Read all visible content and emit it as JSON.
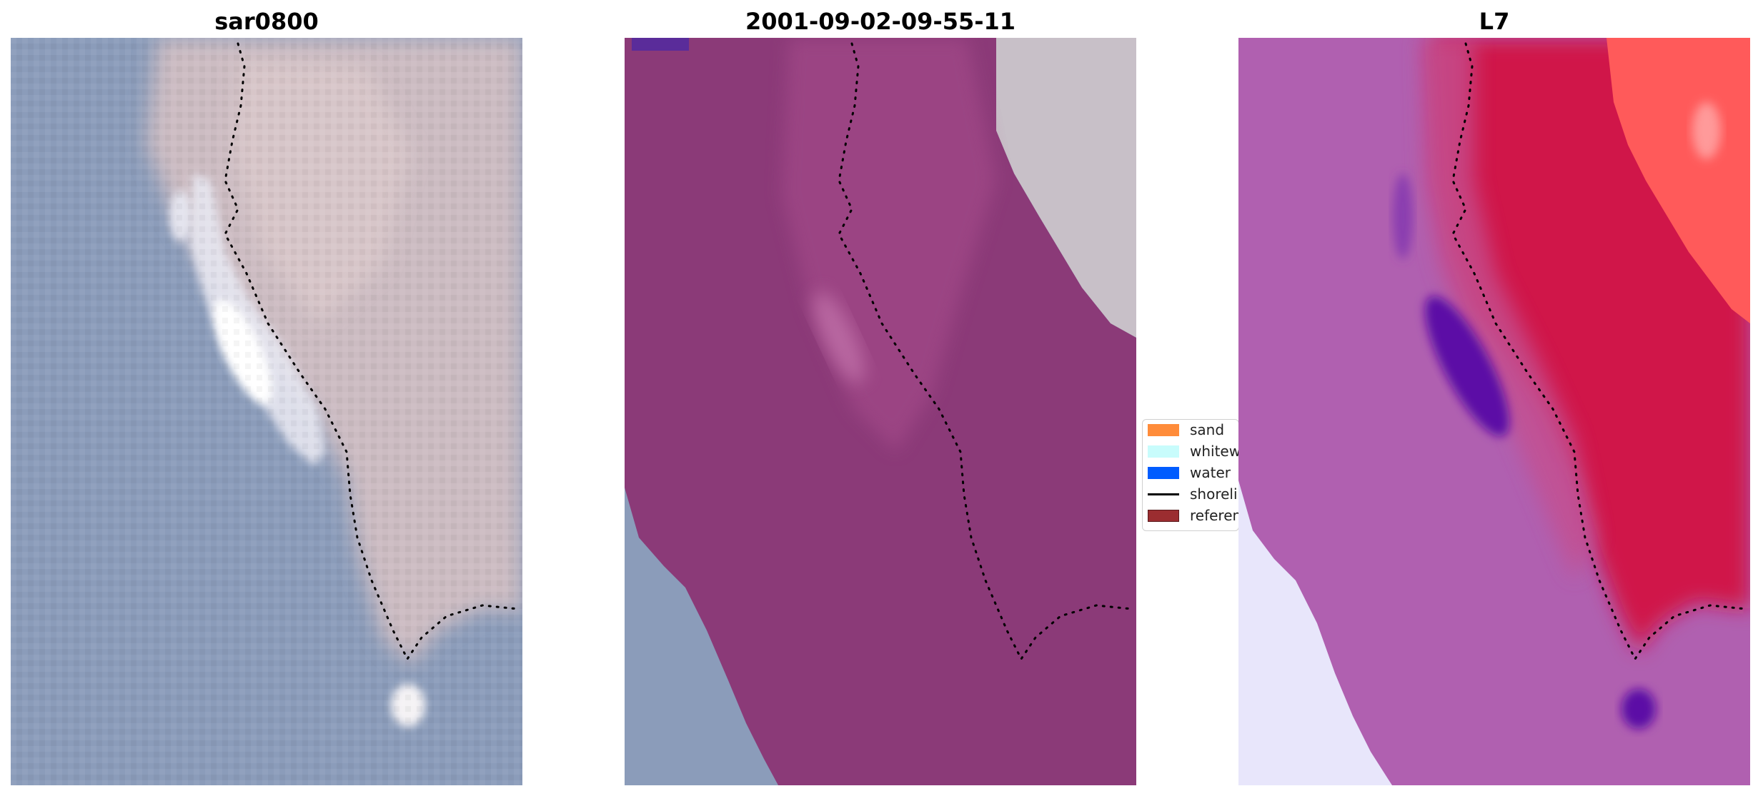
{
  "panels": [
    {
      "title": "sar0800"
    },
    {
      "title": "2001-09-02-09-55-11"
    },
    {
      "title": "L7"
    }
  ],
  "legend": {
    "items": [
      {
        "label": "sand",
        "color": "#ff8c3a"
      },
      {
        "label": "whitewater",
        "color": "#c8fcfc"
      },
      {
        "label": "water",
        "color": "#005cff"
      },
      {
        "label": "shoreline",
        "color": "#000000"
      },
      {
        "label": "reference",
        "color": "#9b2d30"
      }
    ]
  },
  "colors": {
    "water_rgb": "#8b9cba",
    "beach_rgb": "#ccbcc2",
    "class_overlay": "#8b3a78",
    "l7_magenta": "#b060b0",
    "l7_red": "#d01848",
    "l7_bright_red": "#ff5a5a",
    "l7_pale": "#e8e6fb",
    "l7_purple": "#5c0ca6"
  }
}
